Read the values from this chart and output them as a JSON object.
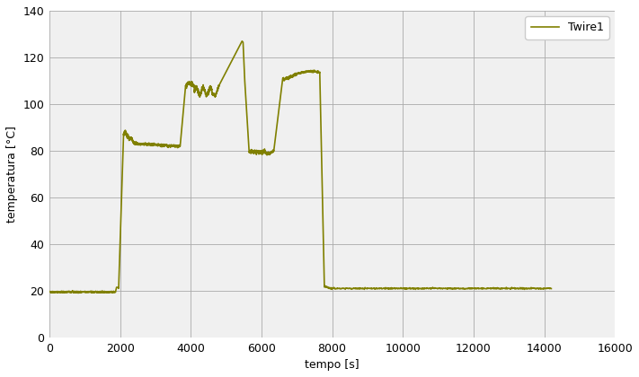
{
  "line_color": "#808000",
  "line_width": 1.2,
  "legend_label": "Twire1",
  "xlabel": "tempo [s]",
  "ylabel": "temperatura [°C]",
  "xlim": [
    0,
    16000
  ],
  "ylim": [
    0,
    140
  ],
  "xticks": [
    0,
    2000,
    4000,
    6000,
    8000,
    10000,
    12000,
    14000,
    16000
  ],
  "yticks": [
    0,
    20,
    40,
    60,
    80,
    100,
    120,
    140
  ],
  "background_color": "#ffffff",
  "plot_bg_color": "#f0f0f0",
  "grid_color": "#aaaaaa"
}
